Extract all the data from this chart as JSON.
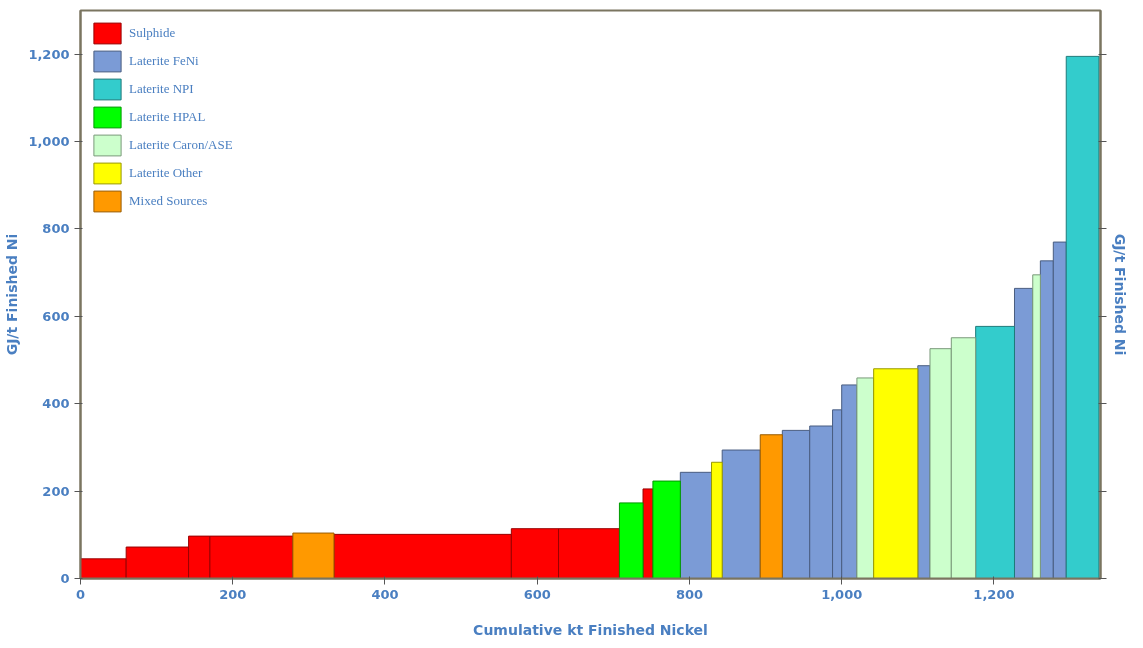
{
  "chart_data": {
    "type": "histogram",
    "xlabel": "Cumulative kt Finished Nickel",
    "ylabel": "GJ/t Finished Ni",
    "xlim": [
      0,
      1340
    ],
    "ylim": [
      0,
      1300
    ],
    "xticks": [
      0,
      200,
      400,
      600,
      800,
      {
        "value": 1000,
        "label": "1,000"
      },
      {
        "value": 1200,
        "label": "1,200"
      }
    ],
    "yticks": [
      0,
      200,
      400,
      600,
      800,
      {
        "value": 1000,
        "label": "1,000"
      },
      {
        "value": 1200,
        "label": "1,200"
      }
    ],
    "grid": false,
    "legend": "top left",
    "bins": [
      0,
      60,
      142,
      170,
      279,
      333,
      566,
      628,
      708,
      739,
      752,
      788,
      829,
      843,
      893,
      922,
      958,
      988,
      1000,
      1020,
      1042,
      1100,
      1116,
      1144,
      1176,
      1227,
      1251,
      1261,
      1278,
      1295,
      1338
    ],
    "series": [
      {
        "name": "Sulphide",
        "color": "#ff0000",
        "values": [
          45,
          72,
          97,
          97,
          null,
          101,
          114,
          114,
          null,
          205,
          null,
          null,
          null,
          null,
          null,
          null,
          null,
          null,
          null,
          null,
          null,
          null,
          null,
          null,
          null,
          null,
          null,
          null,
          null,
          null
        ]
      },
      {
        "name": "Laterite FeNi",
        "color": "#7b9bd6",
        "values": [
          null,
          null,
          null,
          null,
          null,
          null,
          null,
          null,
          null,
          null,
          null,
          243,
          null,
          294,
          null,
          339,
          349,
          386,
          443,
          null,
          null,
          487,
          null,
          null,
          null,
          664,
          null,
          727,
          770,
          null
        ]
      },
      {
        "name": "Laterite NPI",
        "color": "#33cccc",
        "values": [
          null,
          null,
          null,
          null,
          null,
          null,
          null,
          null,
          null,
          null,
          null,
          null,
          null,
          null,
          null,
          null,
          null,
          null,
          null,
          null,
          null,
          null,
          null,
          null,
          577,
          null,
          null,
          null,
          null,
          1195
        ]
      },
      {
        "name": "Laterite HPAL",
        "color": "#00ff00",
        "values": [
          null,
          null,
          null,
          null,
          null,
          null,
          null,
          null,
          173,
          null,
          223,
          null,
          null,
          null,
          null,
          null,
          null,
          null,
          null,
          null,
          null,
          null,
          null,
          null,
          null,
          null,
          null,
          null,
          null,
          null
        ]
      },
      {
        "name": "Laterite Caron/ASE",
        "color": "#ccffcc",
        "values": [
          null,
          null,
          null,
          null,
          null,
          null,
          null,
          null,
          null,
          null,
          null,
          null,
          null,
          null,
          null,
          null,
          null,
          null,
          null,
          459,
          null,
          null,
          526,
          551,
          null,
          null,
          695,
          null,
          null,
          null
        ]
      },
      {
        "name": "Laterite Other",
        "color": "#ffff00",
        "values": [
          null,
          null,
          null,
          null,
          null,
          null,
          null,
          null,
          null,
          null,
          null,
          null,
          266,
          null,
          null,
          null,
          null,
          null,
          null,
          null,
          480,
          null,
          null,
          null,
          null,
          null,
          null,
          null,
          null,
          null
        ]
      },
      {
        "name": "Mixed Sources",
        "color": "#ff9900",
        "values": [
          null,
          null,
          null,
          null,
          104,
          null,
          null,
          null,
          null,
          null,
          null,
          null,
          null,
          null,
          329,
          null,
          null,
          null,
          null,
          null,
          null,
          null,
          null,
          null,
          null,
          null,
          null,
          null,
          null,
          null
        ]
      }
    ]
  }
}
